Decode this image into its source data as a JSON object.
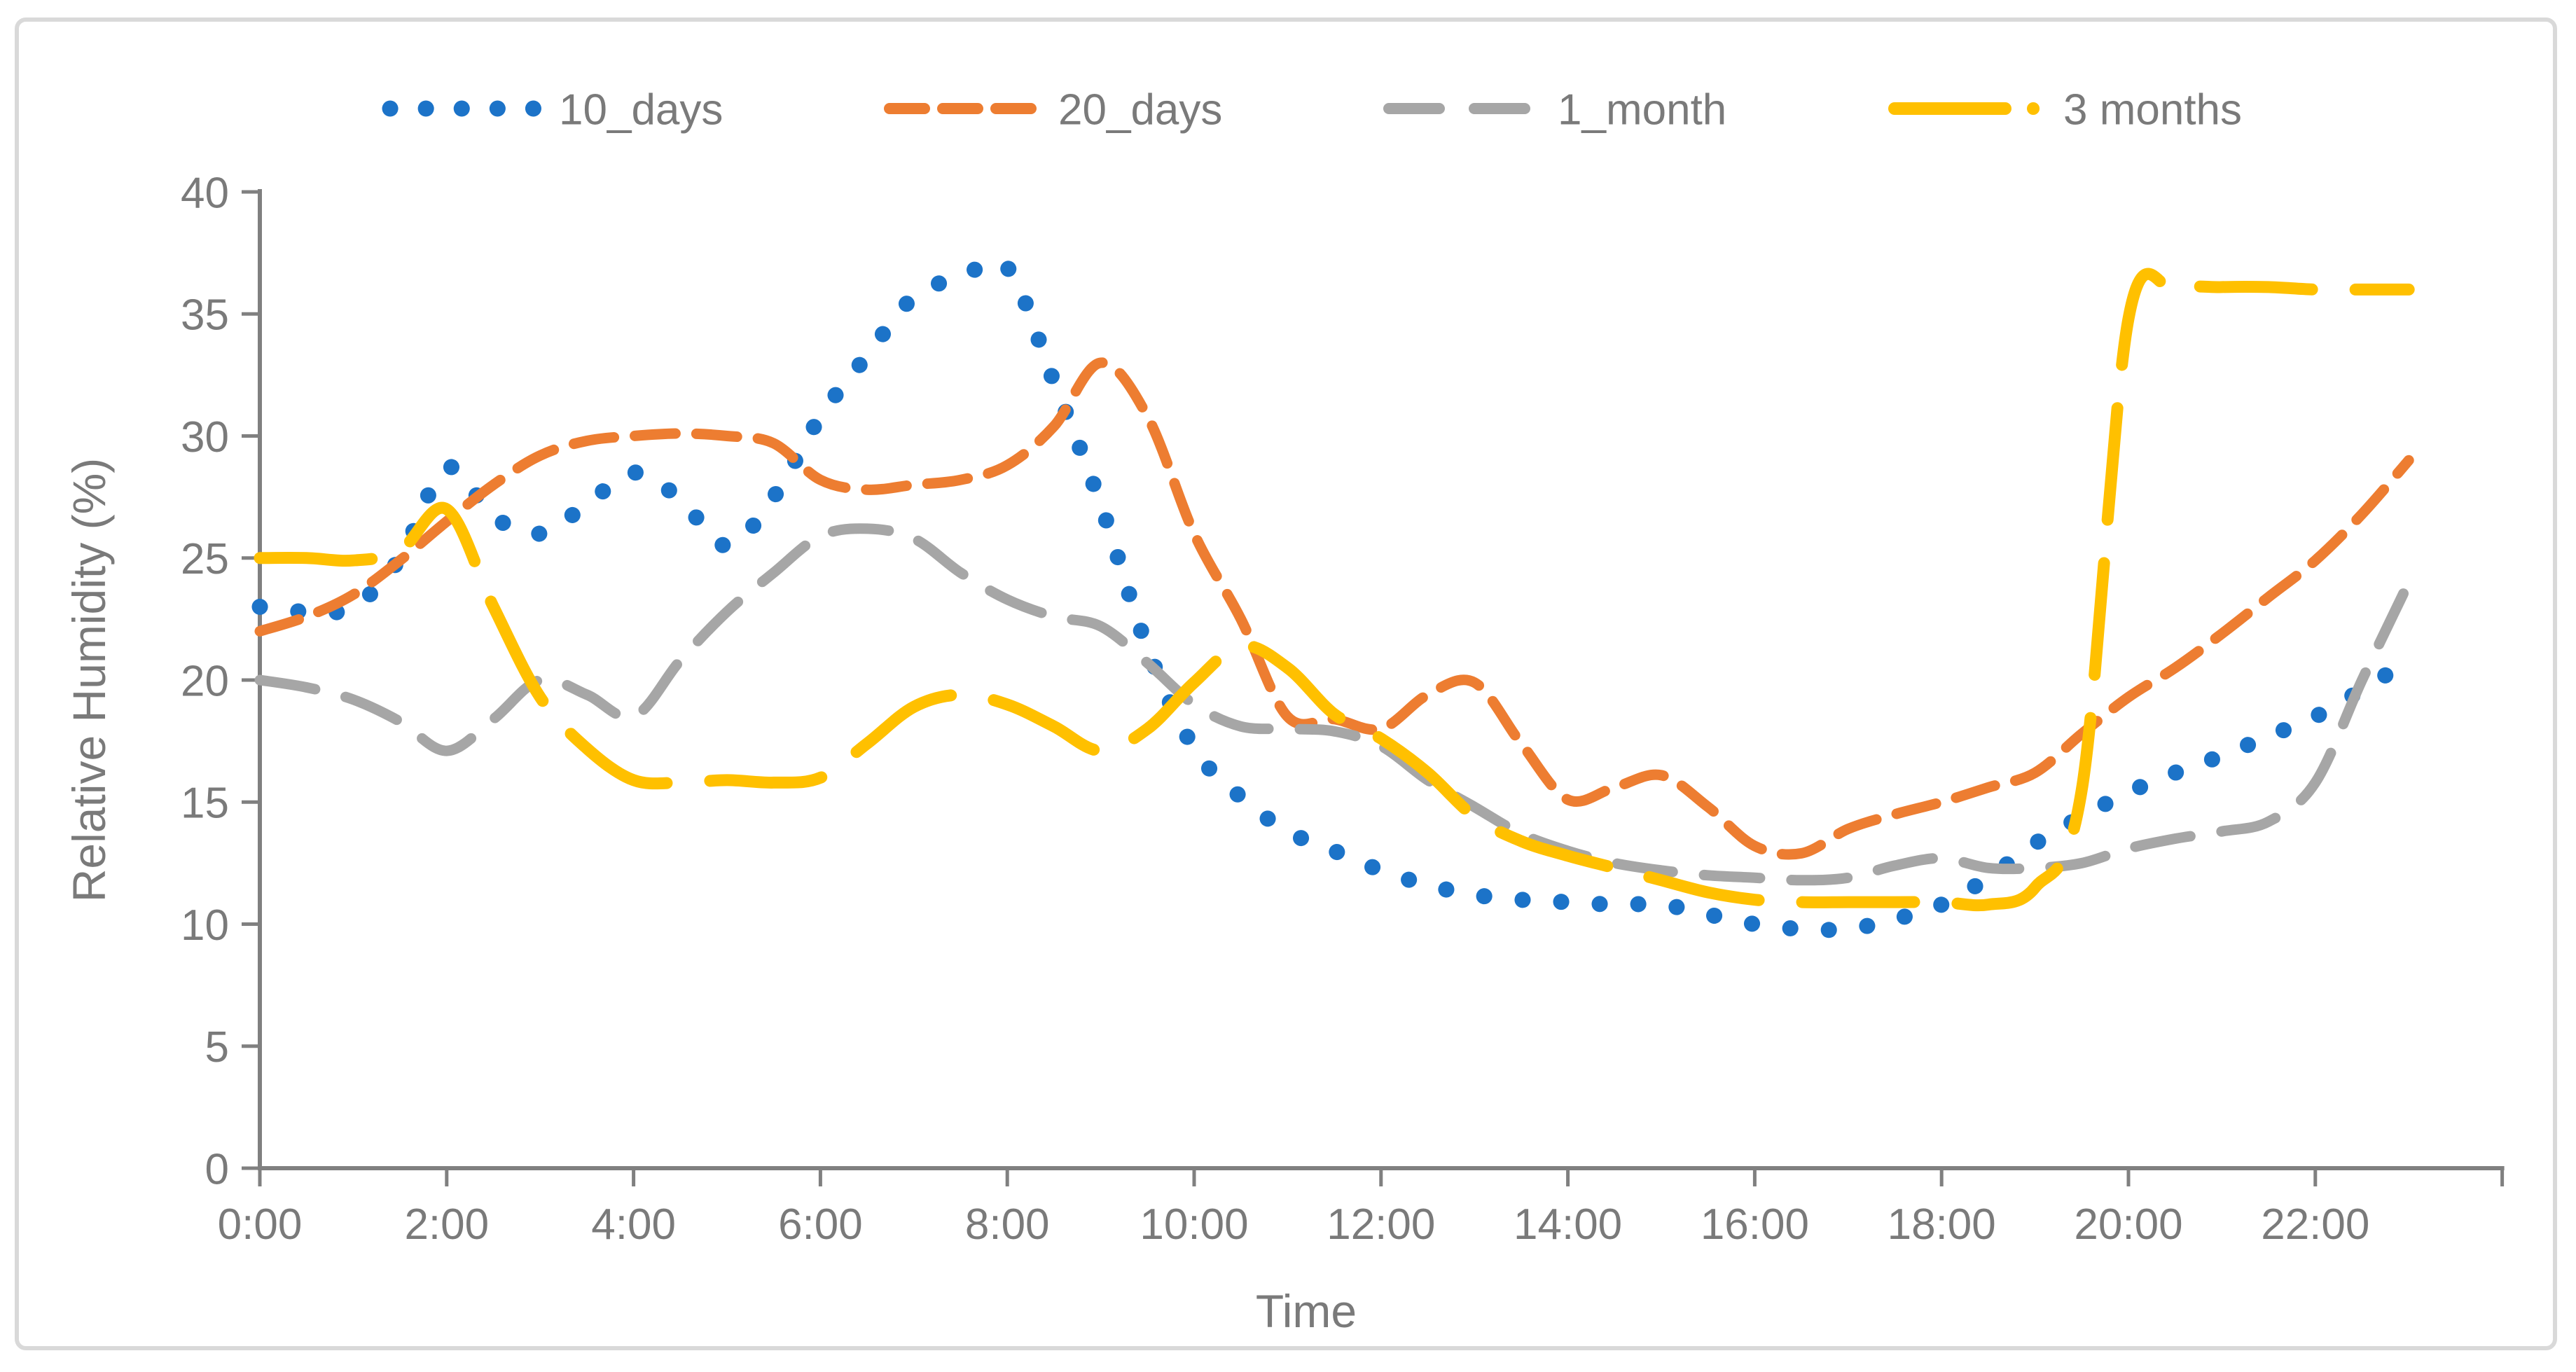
{
  "figure": {
    "background": "#FFFFFF",
    "border_color": "#D9D9D9"
  },
  "chart_data": {
    "type": "line",
    "title": "",
    "xlabel": "Time",
    "ylabel": "Relative Humidity (%)",
    "grid": false,
    "legend_position": "top",
    "ylim": [
      0,
      40
    ],
    "xlim_hours": [
      0,
      24
    ],
    "y_ticks": [
      0,
      5,
      10,
      15,
      20,
      25,
      30,
      35,
      40
    ],
    "x_tick_labels": [
      "0:00",
      "2:00",
      "4:00",
      "6:00",
      "8:00",
      "10:00",
      "12:00",
      "14:00",
      "16:00",
      "18:00",
      "20:00",
      "22:00"
    ],
    "x_tick_step_hours": 2,
    "x_start_hour": 0,
    "x_step_hours": 0.5,
    "axis_color": "#808080",
    "text_color": "#7A7A7A",
    "series": [
      {
        "label": "10_days",
        "color": "#1C73C8",
        "style": "dotted",
        "line_width": 23,
        "dash": [
          0.1,
          55
        ],
        "legend_dash": [
          0.1,
          51
        ],
        "values": [
          23.0,
          22.8,
          23.0,
          25.0,
          28.7,
          26.7,
          26.0,
          27.2,
          28.5,
          27.4,
          25.5,
          27.5,
          30.8,
          33.3,
          35.7,
          36.5,
          36.9,
          32.2,
          27.2,
          21.3,
          17.2,
          15.2,
          13.8,
          13.0,
          12.2,
          11.6,
          11.2,
          11.0,
          10.9,
          10.8,
          10.8,
          10.4,
          10.0,
          9.8,
          9.8,
          10.2,
          10.8,
          11.9,
          13.3,
          14.4,
          15.4,
          16.2,
          16.9,
          17.7,
          18.5,
          19.6,
          20.8
        ]
      },
      {
        "label": "20_days",
        "color": "#ED7D31",
        "style": "dashed",
        "line_width": 15,
        "dash": [
          58,
          30
        ],
        "legend_dash": [
          50,
          26
        ],
        "values": [
          22.0,
          22.6,
          23.5,
          24.9,
          26.5,
          28.0,
          29.2,
          29.8,
          30.0,
          30.1,
          30.0,
          29.7,
          28.2,
          27.8,
          28.0,
          28.2,
          28.8,
          30.4,
          33.0,
          30.8,
          26.0,
          22.5,
          18.5,
          18.4,
          18.0,
          19.4,
          19.9,
          17.4,
          15.1,
          15.6,
          16.1,
          14.8,
          13.2,
          12.9,
          13.9,
          14.5,
          15.0,
          15.6,
          16.2,
          17.8,
          19.3,
          20.5,
          21.9,
          23.4,
          24.9,
          26.8,
          29.0
        ]
      },
      {
        "label": "1_month",
        "color": "#A6A6A6",
        "style": "dashed",
        "line_width": 15,
        "dash": [
          80,
          45
        ],
        "legend_dash": [
          72,
          50
        ],
        "values": [
          20.0,
          19.7,
          19.2,
          18.3,
          17.1,
          18.4,
          20.0,
          19.4,
          18.5,
          20.8,
          22.8,
          24.4,
          25.9,
          26.2,
          25.8,
          24.4,
          23.3,
          22.6,
          22.2,
          20.7,
          19.0,
          18.1,
          18.0,
          17.9,
          17.3,
          15.9,
          14.8,
          13.7,
          13.0,
          12.5,
          12.2,
          12.0,
          11.9,
          11.8,
          11.9,
          12.4,
          12.7,
          12.3,
          12.3,
          12.5,
          13.1,
          13.5,
          13.8,
          14.2,
          15.8,
          20.0,
          24.0
        ]
      },
      {
        "label": "3 months",
        "color": "#FFC000",
        "style": "long-dash",
        "line_width": 17,
        "dash": [
          160,
          62
        ],
        "legend_dash": [
          158,
          40,
          0.1,
          20
        ],
        "values": [
          25.0,
          25.0,
          24.9,
          25.3,
          27.0,
          23.0,
          19.3,
          17.2,
          15.9,
          15.8,
          15.9,
          15.8,
          16.0,
          17.4,
          18.9,
          19.4,
          19.0,
          18.1,
          17.1,
          18.0,
          19.9,
          21.4,
          20.5,
          18.6,
          17.6,
          16.2,
          14.4,
          13.4,
          12.8,
          12.3,
          11.8,
          11.3,
          11.0,
          10.9,
          10.9,
          10.9,
          10.9,
          10.8,
          11.5,
          15.5,
          34.8,
          36.0,
          36.1,
          36.1,
          36.0,
          36.0,
          36.0
        ]
      }
    ]
  }
}
